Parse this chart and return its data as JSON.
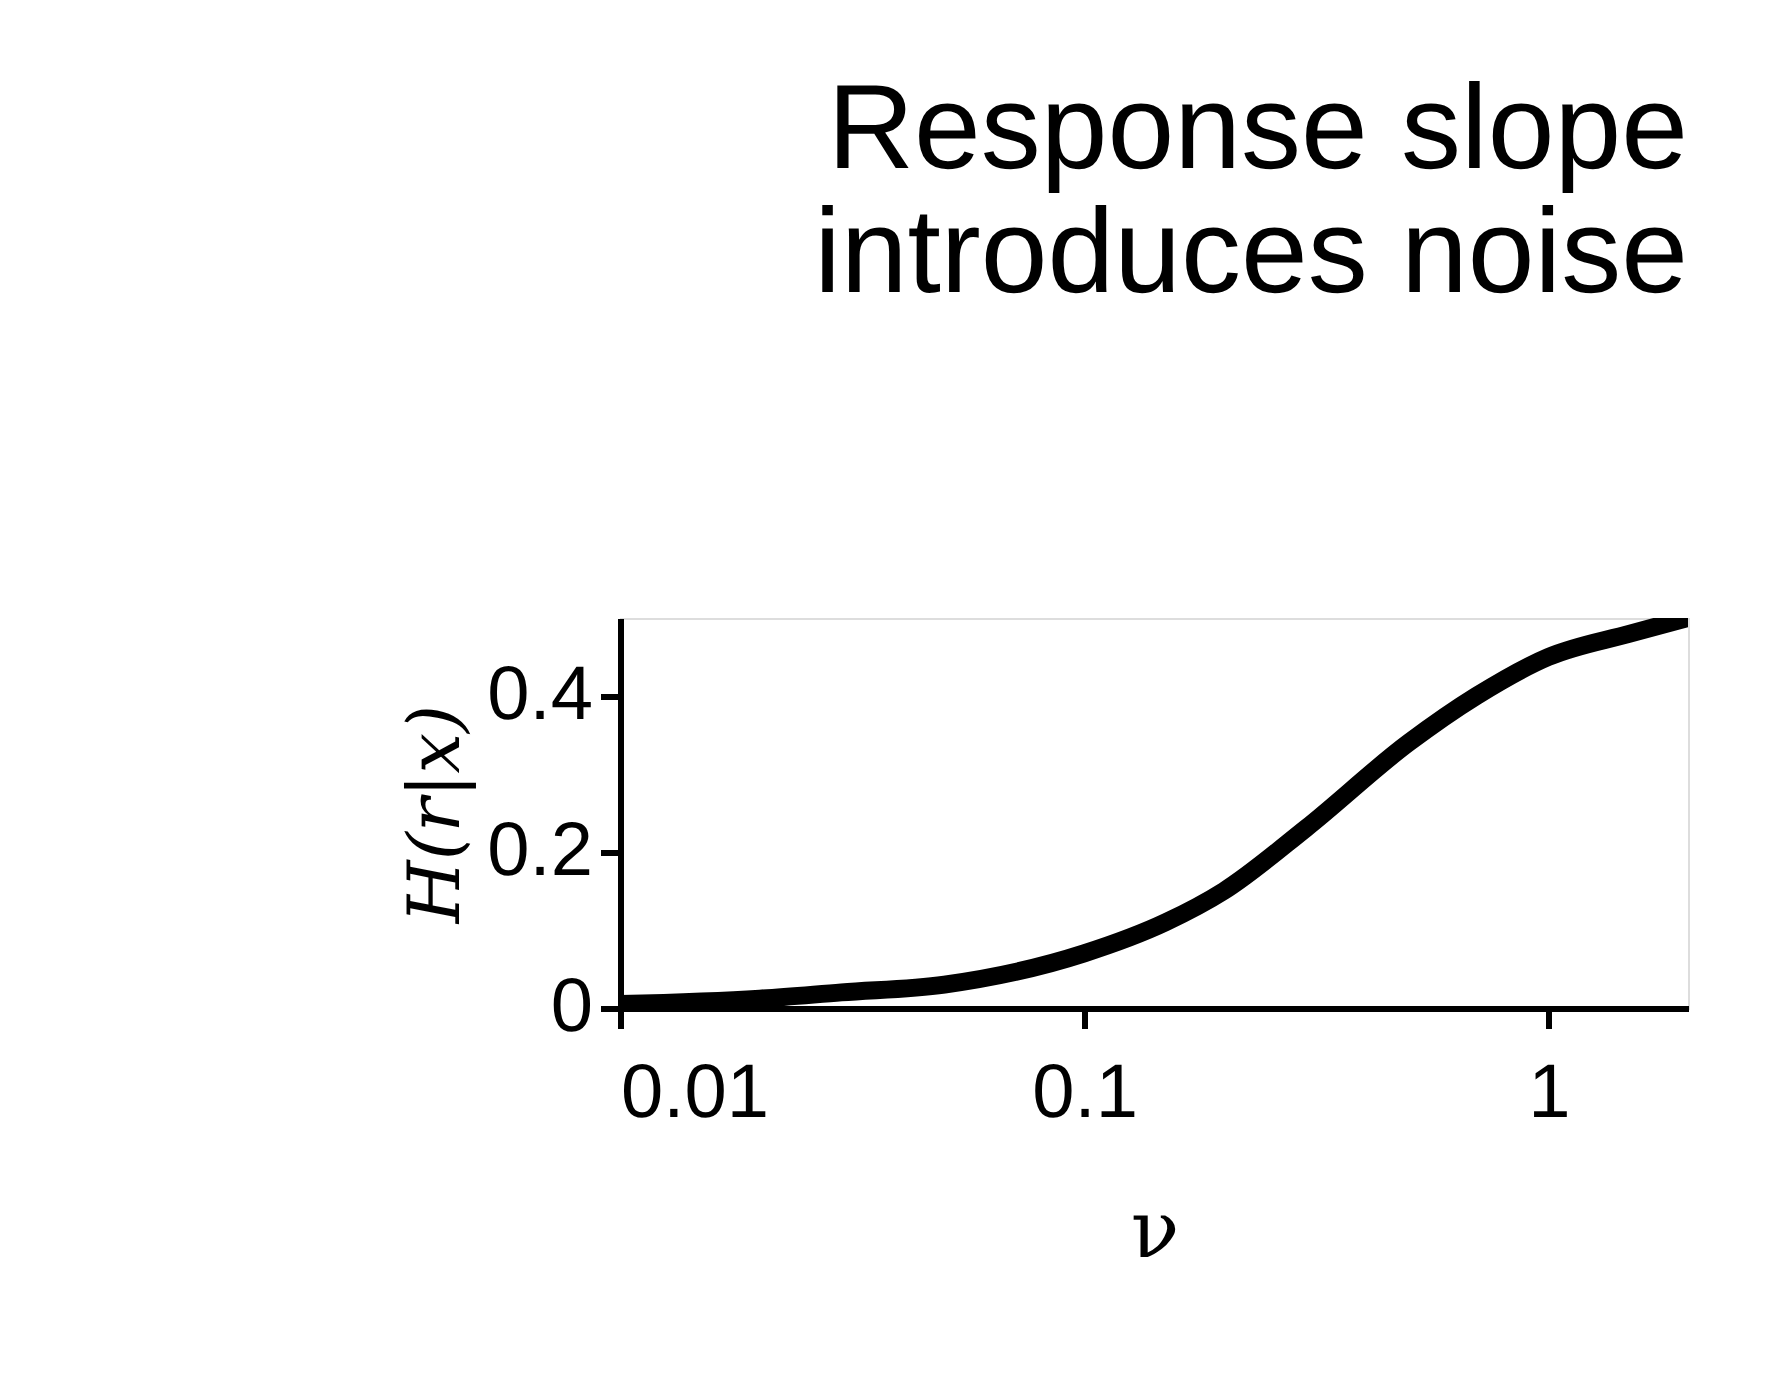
{
  "chart_data": {
    "type": "line",
    "title": "Response slope\nintroduces noise",
    "xlabel": "ν",
    "ylabel": "H(r|x)",
    "log": "x",
    "xlim": [
      0.01,
      2
    ],
    "xticks": [
      0.01,
      0.1,
      1
    ],
    "ylim": [
      0,
      0.5
    ],
    "yticks": [
      0,
      0.2,
      0.4
    ],
    "grid": false,
    "legend": false,
    "line_style": "solid",
    "series": [
      {
        "color": "#000000",
        "x": [
          0.01,
          0.02,
          0.03,
          0.05,
          0.1,
          0.15,
          0.2,
          0.3,
          0.5,
          0.7,
          1,
          1.5,
          2
        ],
        "values": [
          0.005,
          0.012,
          0.02,
          0.03,
          0.07,
          0.11,
          0.15,
          0.23,
          0.34,
          0.4,
          0.45,
          0.48,
          0.5
        ]
      }
    ]
  }
}
